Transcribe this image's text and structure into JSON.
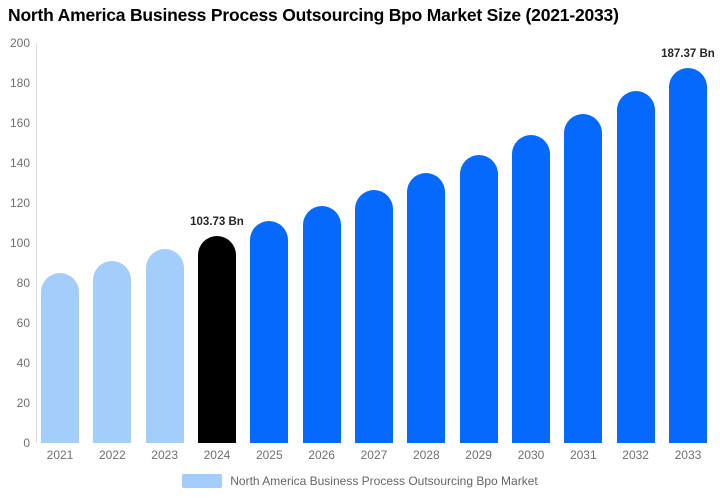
{
  "header": {
    "title": "North America Business Process Outsourcing Bpo Market Size (2021-2033)"
  },
  "legend": {
    "label": "North America Business Process Outsourcing Bpo Market",
    "swatch_color": "#A3CDFA",
    "position": "bottom"
  },
  "colors": {
    "light_blue_bar": "#A3CDFA",
    "highlight_black_bar": "#000000",
    "blue_bar": "#0569FD",
    "axis_text": "#707070",
    "value_label_text": "#262626",
    "axis_line": "#DCDCDC",
    "background": "#FFFFFF",
    "title_text": "#000000"
  },
  "chart_data": {
    "type": "bar",
    "title": "North America Business Process Outsourcing Bpo Market Size (2021-2033)",
    "categories": [
      "2021",
      "2022",
      "2023",
      "2024",
      "2025",
      "2026",
      "2027",
      "2028",
      "2029",
      "2030",
      "2031",
      "2032",
      "2033"
    ],
    "series": [
      {
        "name": "North America Business Process Outsourcing Bpo Market",
        "values": [
          85.0,
          90.8,
          97.1,
          103.73,
          110.8,
          118.3,
          126.4,
          135.0,
          144.2,
          154.1,
          164.6,
          175.8,
          187.37
        ]
      }
    ],
    "bar_colors": [
      "#A3CDFA",
      "#A3CDFA",
      "#A3CDFA",
      "#000000",
      "#0569FD",
      "#0569FD",
      "#0569FD",
      "#0569FD",
      "#0569FD",
      "#0569FD",
      "#0569FD",
      "#0569FD",
      "#0569FD"
    ],
    "data_labels": [
      {
        "category": "2024",
        "text": "103.73 Bn"
      },
      {
        "category": "2033",
        "text": "187.37 Bn"
      }
    ],
    "unit": "Bn",
    "xlabel": "",
    "ylabel": "",
    "ylim": [
      0,
      200
    ],
    "yticks": [
      0,
      20,
      40,
      60,
      80,
      100,
      120,
      140,
      160,
      180,
      200
    ],
    "grid": false,
    "legend_position": "bottom"
  }
}
